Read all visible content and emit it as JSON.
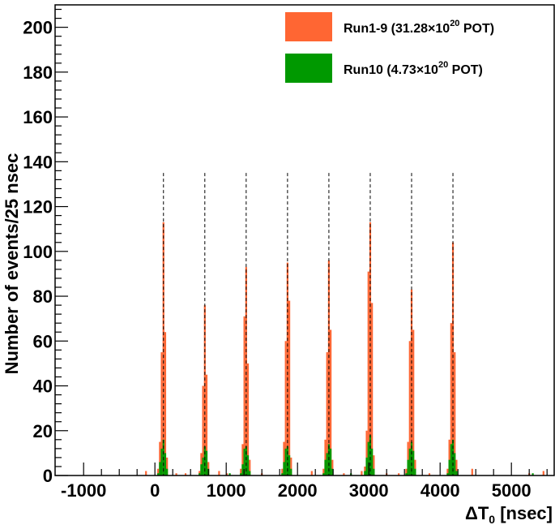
{
  "chart_data": {
    "type": "bar",
    "title": "",
    "xlabel": "ΔT",
    "xlabel_sub": "0",
    "xlabel_unit": " [nsec]",
    "ylabel": "Number of events/25 nsec",
    "xlim": [
      -1400,
      5600
    ],
    "ylim": [
      0,
      210
    ],
    "bin_width": 25,
    "x_ticks": [
      -1000,
      0,
      1000,
      2000,
      3000,
      4000,
      5000
    ],
    "y_ticks": [
      0,
      20,
      40,
      60,
      80,
      100,
      120,
      140,
      160,
      180,
      200
    ],
    "grid": false,
    "legend_position": "top-right",
    "bunch_centers": [
      120,
      700,
      1280,
      1860,
      2440,
      3020,
      3600,
      4180
    ],
    "series": [
      {
        "name_main": "Run1-9 (31.28×10",
        "name_sup": "20",
        "name_tail": " POT)",
        "color": "#ff6633",
        "bunches": [
          {
            "offsets": [
              -75,
              -50,
              -25,
              0,
              25,
              50
            ],
            "values": [
              3,
              15,
              55,
              113,
              64,
              8
            ]
          },
          {
            "offsets": [
              -75,
              -50,
              -25,
              0,
              25,
              50
            ],
            "values": [
              2,
              10,
              40,
              76,
              45,
              6
            ]
          },
          {
            "offsets": [
              -75,
              -50,
              -25,
              0,
              25,
              50
            ],
            "values": [
              3,
              14,
              71,
              93,
              50,
              7
            ]
          },
          {
            "offsets": [
              -75,
              -50,
              -25,
              0,
              25,
              50
            ],
            "values": [
              3,
              15,
              60,
              95,
              78,
              8
            ]
          },
          {
            "offsets": [
              -75,
              -50,
              -25,
              0,
              25,
              50
            ],
            "values": [
              3,
              16,
              55,
              96,
              65,
              7
            ]
          },
          {
            "offsets": [
              -75,
              -50,
              -25,
              0,
              25,
              50
            ],
            "values": [
              4,
              20,
              91,
              113,
              77,
              9
            ]
          },
          {
            "offsets": [
              -75,
              -50,
              -25,
              0,
              25,
              50
            ],
            "values": [
              3,
              15,
              60,
              83,
              65,
              7
            ]
          },
          {
            "offsets": [
              -75,
              -50,
              -25,
              0,
              25,
              50
            ],
            "values": [
              3,
              16,
              68,
              104,
              55,
              7
            ]
          }
        ],
        "background": [
          {
            "x": -125,
            "y": 2
          },
          {
            "x": 300,
            "y": 1
          },
          {
            "x": 430,
            "y": 1
          },
          {
            "x": 900,
            "y": 2
          },
          {
            "x": 1010,
            "y": 1
          },
          {
            "x": 1500,
            "y": 1
          },
          {
            "x": 2200,
            "y": 2
          },
          {
            "x": 2650,
            "y": 1
          },
          {
            "x": 2900,
            "y": 2
          },
          {
            "x": 3250,
            "y": 1
          },
          {
            "x": 3420,
            "y": 1
          },
          {
            "x": 3850,
            "y": 1
          },
          {
            "x": 4450,
            "y": 3
          },
          {
            "x": 5250,
            "y": 1
          },
          {
            "x": 5450,
            "y": 2
          }
        ]
      },
      {
        "name_main": "Run10 (4.73×10",
        "name_sup": "20",
        "name_tail": " POT)",
        "color": "#009900",
        "bunches": [
          {
            "offsets": [
              -75,
              -50,
              -25,
              0,
              25,
              50
            ],
            "values": [
              1,
              6,
              12,
              16,
              10,
              3
            ]
          },
          {
            "offsets": [
              -75,
              -50,
              -25,
              0,
              25,
              50
            ],
            "values": [
              1,
              5,
              8,
              13,
              11,
              3
            ]
          },
          {
            "offsets": [
              -75,
              -50,
              -25,
              0,
              25,
              50
            ],
            "values": [
              1,
              5,
              12,
              13,
              9,
              2
            ]
          },
          {
            "offsets": [
              -75,
              -50,
              -25,
              0,
              25,
              50
            ],
            "values": [
              1,
              6,
              12,
              13,
              9,
              3
            ]
          },
          {
            "offsets": [
              -75,
              -50,
              -25,
              0,
              25,
              50
            ],
            "values": [
              1,
              7,
              10,
              14,
              12,
              3
            ]
          },
          {
            "offsets": [
              -75,
              -50,
              -25,
              0,
              25,
              50
            ],
            "values": [
              2,
              8,
              15,
              18,
              12,
              3
            ]
          },
          {
            "offsets": [
              -75,
              -50,
              -25,
              0,
              25,
              50
            ],
            "values": [
              1,
              7,
              12,
              15,
              11,
              3
            ]
          },
          {
            "offsets": [
              -75,
              -50,
              -25,
              0,
              25,
              50
            ],
            "values": [
              1,
              7,
              14,
              16,
              10,
              2
            ]
          }
        ],
        "background": [
          {
            "x": 1050,
            "y": 1
          },
          {
            "x": 2750,
            "y": 1
          },
          {
            "x": 5300,
            "y": 1
          }
        ]
      }
    ]
  }
}
